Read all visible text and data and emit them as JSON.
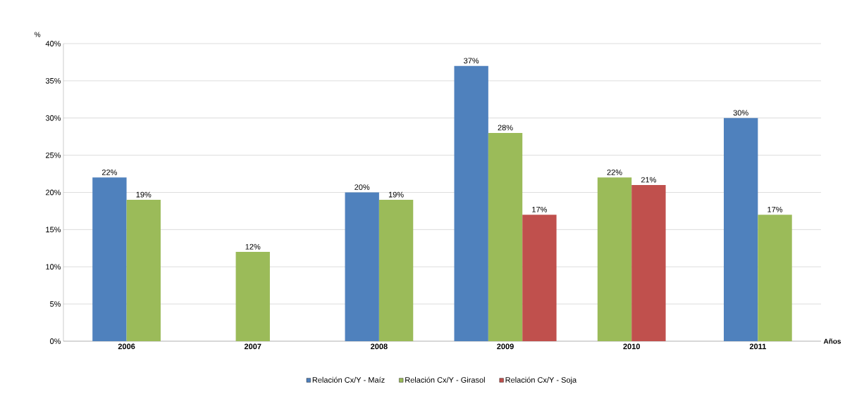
{
  "chart_data": {
    "type": "bar",
    "ylabel": "%",
    "xlabel": "Años",
    "categories": [
      "2006",
      "2007",
      "2008",
      "2009",
      "2010",
      "2011"
    ],
    "series": [
      {
        "name": "Relación Cx/Y - Maíz",
        "color": "#4f81bd",
        "values": [
          22,
          null,
          20,
          37,
          null,
          30
        ],
        "value_labels": [
          "22%",
          null,
          "20%",
          "37%",
          null,
          "30%"
        ]
      },
      {
        "name": "Relación Cx/Y - Girasol",
        "color": "#9bbb59",
        "values": [
          19,
          12,
          19,
          28,
          22,
          17
        ],
        "value_labels": [
          "19%",
          "12%",
          "19%",
          "28%",
          "22%",
          "17%"
        ]
      },
      {
        "name": "Relación Cx/Y - Soja",
        "color": "#c0504d",
        "values": [
          null,
          null,
          null,
          17,
          21,
          null
        ],
        "value_labels": [
          null,
          null,
          null,
          "17%",
          "21%",
          null
        ]
      }
    ],
    "ylim": [
      0,
      40
    ],
    "yticks": [
      {
        "value": 0,
        "label": "0%"
      },
      {
        "value": 5,
        "label": "5%"
      },
      {
        "value": 10,
        "label": "10%"
      },
      {
        "value": 15,
        "label": "15%"
      },
      {
        "value": 20,
        "label": "20%"
      },
      {
        "value": 25,
        "label": "25%"
      },
      {
        "value": 30,
        "label": "30%"
      },
      {
        "value": 35,
        "label": "35%"
      },
      {
        "value": 40,
        "label": "40%"
      }
    ],
    "grid": "y",
    "legend": "bottom"
  }
}
